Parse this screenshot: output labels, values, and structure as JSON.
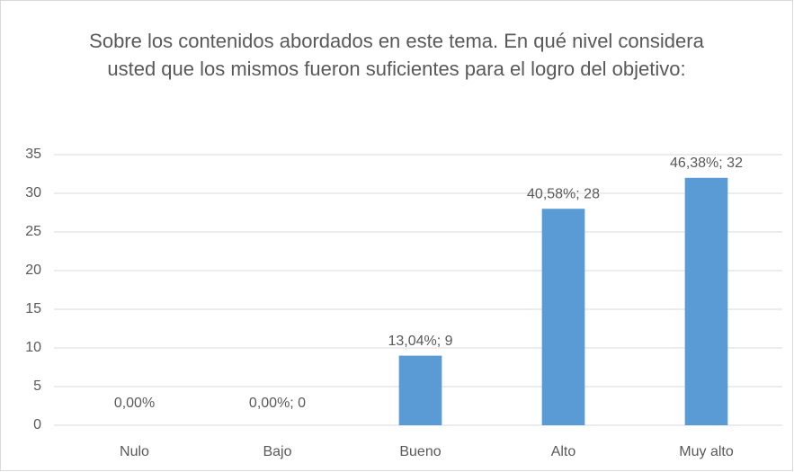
{
  "chart_data": {
    "type": "bar",
    "title": "Sobre los contenidos abordados en este tema. En qué nivel considera usted que los mismos fueron suficientes para el logro del objetivo:",
    "categories": [
      "Nulo",
      "Bajo",
      "Bueno",
      "Alto",
      "Muy alto"
    ],
    "values": [
      0,
      0,
      9,
      28,
      32
    ],
    "value_labels": [
      "0,00%",
      "0,00%; 0",
      "13,04%; 9",
      "40,58%; 28",
      "46,38%; 32"
    ],
    "color": "#5b9bd5",
    "ylim": [
      0,
      35
    ],
    "yticks": [
      0,
      5,
      10,
      15,
      20,
      25,
      30,
      35
    ],
    "grid": true
  }
}
